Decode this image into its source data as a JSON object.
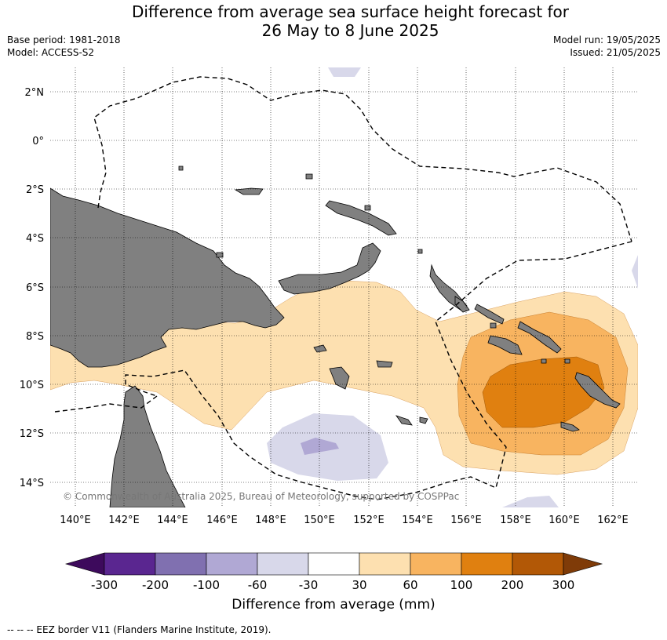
{
  "title_line1": "Difference from average sea surface height forecast for",
  "title_line2": "26 May to 8 June 2025",
  "base_period": "Base period: 1981-2018",
  "model": "Model: ACCESS-S2",
  "model_run": "Model run: 19/05/2025",
  "issued": "Issued: 21/05/2025",
  "copyright": "© Commonwealth of Australia 2025, Bureau of Meteorology, supported by COSPPac",
  "lat_labels": [
    "2°N",
    "0°",
    "2°S",
    "4°S",
    "6°S",
    "8°S",
    "10°S",
    "12°S",
    "14°S"
  ],
  "lon_labels": [
    "140°E",
    "142°E",
    "144°E",
    "146°E",
    "148°E",
    "150°E",
    "152°E",
    "154°E",
    "156°E",
    "158°E",
    "160°E",
    "162°E"
  ],
  "colorbar": {
    "label": "Difference from average (mm)",
    "ticks": [
      "-300",
      "-200",
      "-100",
      "-60",
      "-30",
      "30",
      "60",
      "100",
      "200",
      "300"
    ],
    "colors": [
      "#3d0a5c",
      "#5a2690",
      "#8070b0",
      "#b0a8d4",
      "#d8d8ea",
      "#ffffff",
      "#fde0b0",
      "#f8b460",
      "#e08010",
      "#b25806",
      "#7f3b08"
    ]
  },
  "colors": {
    "land": "#808080",
    "neg_light": "#d8d8ea",
    "neg_medium": "#b0a8d4",
    "pos_light": "#fde0b0",
    "pos_medium": "#f8b460",
    "pos_strong": "#e08010"
  },
  "legend_note": "-- -- -- EEZ border V11 (Flanders Marine Institute, 2019)."
}
